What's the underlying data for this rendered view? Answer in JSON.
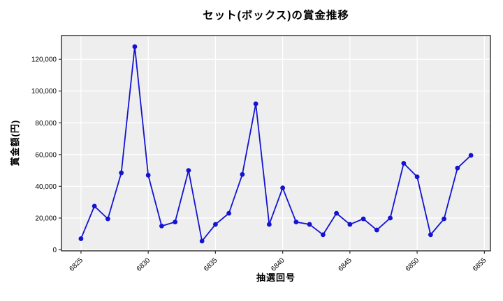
{
  "chart_data": {
    "type": "line",
    "title": "セット(ボックス)の賞金推移",
    "xlabel": "抽選回号",
    "ylabel": "賞金額(円)",
    "x": [
      6825,
      6826,
      6827,
      6828,
      6829,
      6830,
      6831,
      6832,
      6833,
      6834,
      6835,
      6836,
      6837,
      6838,
      6839,
      6840,
      6841,
      6842,
      6843,
      6844,
      6845,
      6846,
      6847,
      6848,
      6849,
      6850,
      6851,
      6852,
      6853,
      6854
    ],
    "values": [
      7000,
      27500,
      19500,
      48500,
      128000,
      47000,
      15000,
      17500,
      50000,
      5500,
      16000,
      23000,
      47500,
      92000,
      16000,
      39000,
      17500,
      16000,
      9500,
      23000,
      16000,
      19500,
      12500,
      20000,
      54500,
      46000,
      9500,
      19500,
      51500,
      59500
    ],
    "xticks": [
      6825,
      6830,
      6835,
      6840,
      6845,
      6850,
      6855
    ],
    "xtick_labels": [
      "6825",
      "6830",
      "6835",
      "6840",
      "6845",
      "6850",
      "6855"
    ],
    "yticks": [
      0,
      20000,
      40000,
      60000,
      80000,
      100000,
      120000
    ],
    "ytick_labels": [
      "0",
      "20,000",
      "40,000",
      "60,000",
      "80,000",
      "100,000",
      "120,000"
    ],
    "xlim": [
      6823.55,
      6855.45
    ],
    "ylim": [
      -650,
      135000
    ],
    "grid": true,
    "legend": false,
    "colors": {
      "line": "#1313d2",
      "marker": "#1313d2",
      "plot_background": "#eeeeee",
      "grid": "#ffffff",
      "spine": "#2e2e2e",
      "tick_text": "#000000",
      "figure_background": "#ffffff"
    }
  }
}
